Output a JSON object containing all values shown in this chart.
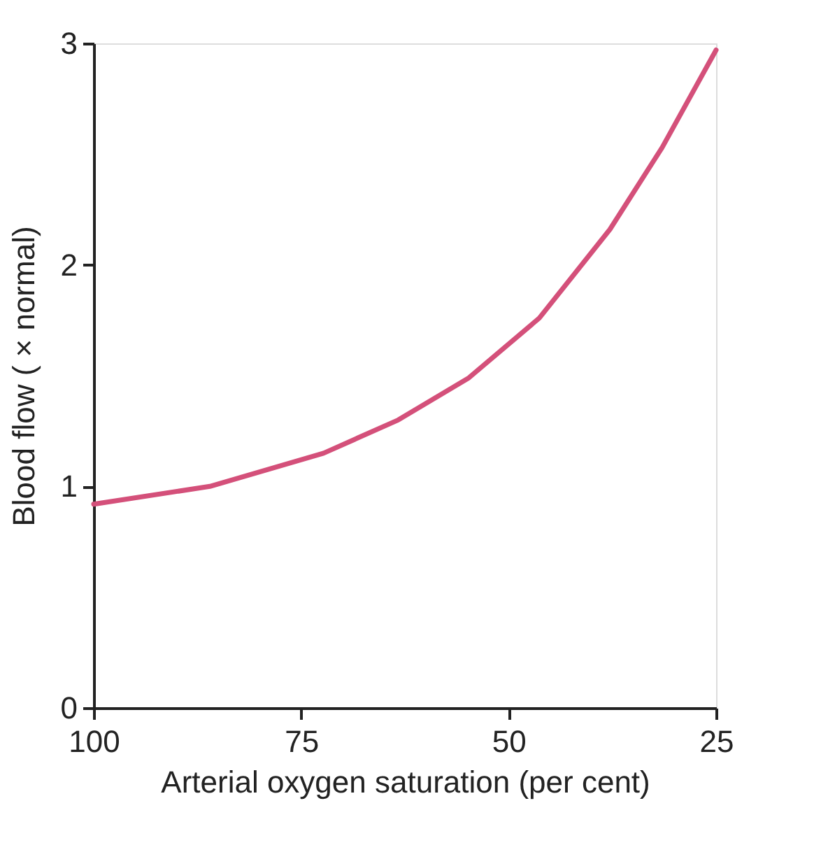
{
  "chart_data": {
    "type": "line",
    "xlabel": "Arterial oxygen saturation (per cent)",
    "ylabel": "Blood flow ( × normal)",
    "x": [
      100,
      86,
      72.3,
      63.3,
      54.8,
      46.3,
      37.8,
      31.5,
      25
    ],
    "series": [
      {
        "color": "#d4507a",
        "values": [
          0.92,
          1.0,
          1.15,
          1.3,
          1.49,
          1.76,
          2.16,
          2.53,
          2.97
        ]
      }
    ],
    "xlim": [
      100,
      25
    ],
    "xticks": [
      100,
      75,
      50,
      25
    ],
    "ylim": [
      0,
      3
    ],
    "yticks": [
      0,
      1,
      2,
      3
    ],
    "grid": false,
    "marker": "none",
    "line_style": "solid"
  }
}
